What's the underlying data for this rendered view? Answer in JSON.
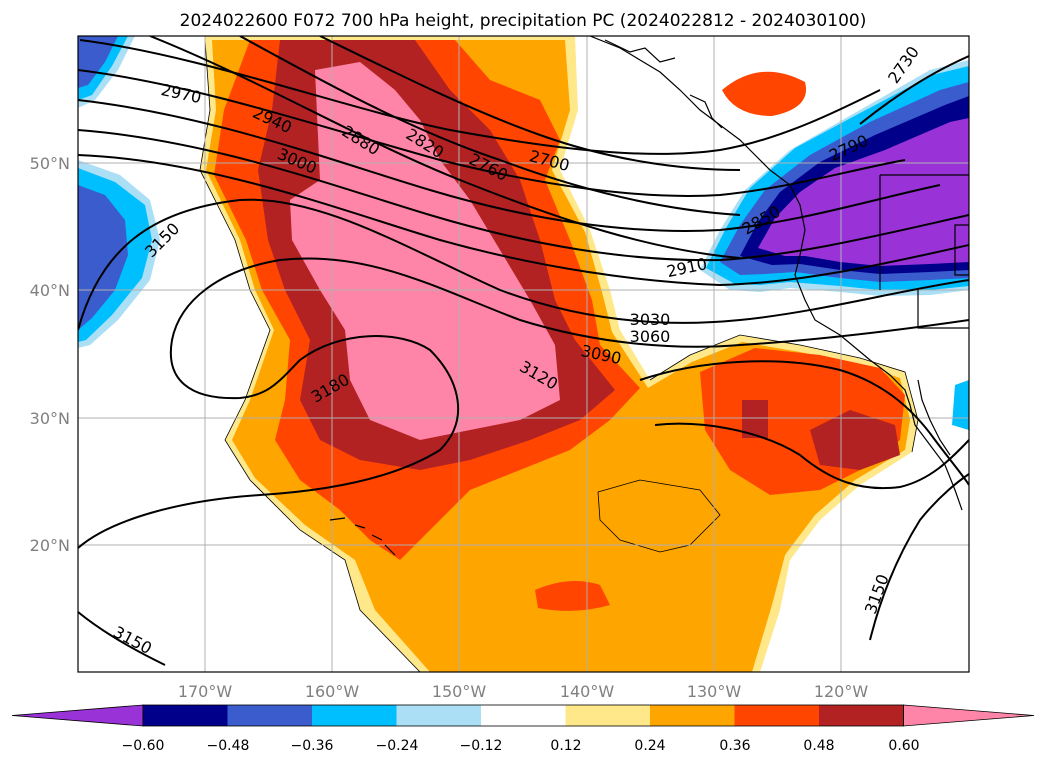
{
  "title": "2024022600 F072 700 hPa height, precipitation PC (2024022812 - 2024030100)",
  "x_ticks": [
    "170°W",
    "160°W",
    "150°W",
    "140°W",
    "130°W",
    "120°W"
  ],
  "y_ticks": [
    "50°N",
    "40°N",
    "30°N",
    "20°N"
  ],
  "colorbar": {
    "ticks": [
      "−0.60",
      "−0.48",
      "−0.36",
      "−0.24",
      "−0.12",
      "0.12",
      "0.24",
      "0.36",
      "0.48",
      "0.60"
    ],
    "levels": [
      -0.6,
      -0.48,
      -0.36,
      -0.24,
      -0.12,
      0.12,
      0.24,
      0.36,
      0.48,
      0.6
    ],
    "colors": [
      "#9933d8",
      "#00008b",
      "#3a5ccc",
      "#00bfff",
      "#aadff5",
      "#ffffff",
      "#ffe88a",
      "#ffa500",
      "#ff4500",
      "#b22222",
      "#ff85a8"
    ]
  },
  "contour_labels": [
    "2970",
    "2940",
    "2880",
    "2820",
    "2760",
    "2700",
    "3000",
    "3150",
    "3180",
    "3120",
    "3090",
    "3060",
    "3030",
    "2910",
    "2850",
    "2790",
    "2730",
    "3150"
  ]
}
